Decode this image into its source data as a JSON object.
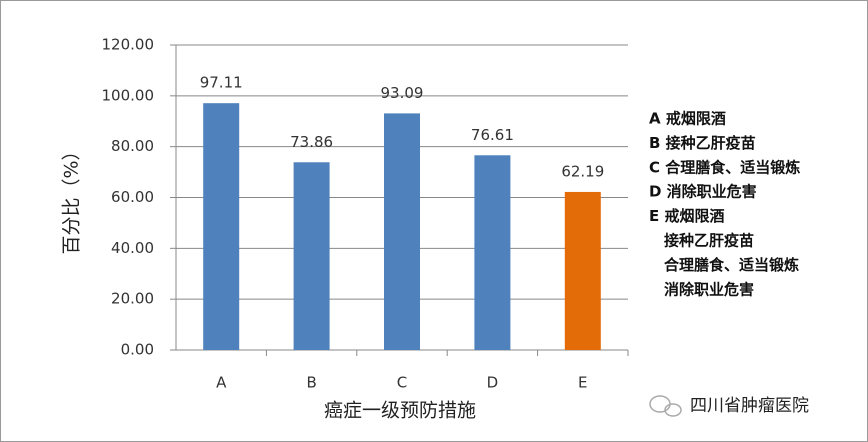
{
  "chart_data": {
    "type": "bar",
    "y_label": "百分比（%）",
    "x_label": "癌症一级预防措施",
    "categories": [
      "A",
      "B",
      "C",
      "D",
      "E"
    ],
    "values": [
      97.11,
      73.86,
      93.09,
      76.61,
      62.19
    ],
    "colors": [
      "#4f81bd",
      "#4f81bd",
      "#4f81bd",
      "#4f81bd",
      "#e36c09"
    ],
    "ylim": [
      0,
      120
    ],
    "yticks": [
      {
        "value": 0,
        "label": "0.00"
      },
      {
        "value": 20,
        "label": "20.00"
      },
      {
        "value": 40,
        "label": "40.00"
      },
      {
        "value": 60,
        "label": "60.00"
      },
      {
        "value": 80,
        "label": "80.00"
      },
      {
        "value": 100,
        "label": "100.00"
      },
      {
        "value": 120,
        "label": "120.00"
      }
    ],
    "grid": true,
    "legend_notes": [
      [
        "A 戒烟限酒"
      ],
      [
        "B 接种乙肝疫苗"
      ],
      [
        "C 合理膳食、适当锻炼"
      ],
      [
        "D 消除职业危害"
      ],
      [
        "E 戒烟限酒",
        "接种乙肝疫苗",
        "合理膳食、适当锻炼",
        "消除职业危害"
      ]
    ],
    "watermark": "四川省肿瘤医院"
  }
}
